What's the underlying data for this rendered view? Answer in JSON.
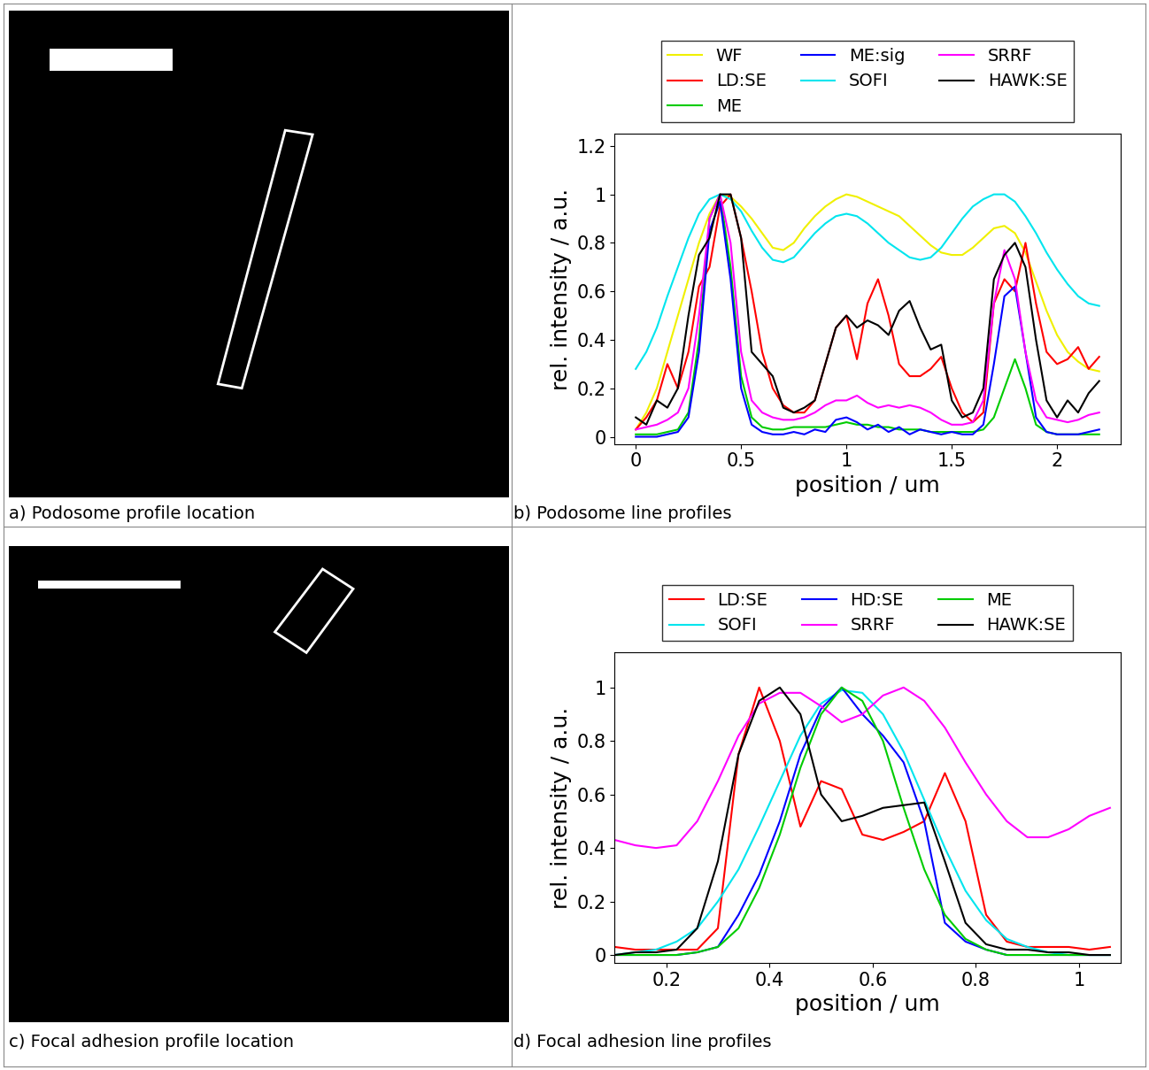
{
  "chart_data": [
    {
      "type": "image",
      "title": "a) Podosome profile location"
    },
    {
      "type": "line",
      "title": "b) Podosome line profiles",
      "x_label": "position / um",
      "y_label": "rel. intensity / a.u.",
      "xlim": [
        -0.1,
        2.3
      ],
      "ylim": [
        -0.03,
        1.25
      ],
      "xticks": [
        0,
        0.5,
        1,
        1.5,
        2
      ],
      "yticks": [
        0,
        0.2,
        0.4,
        0.6,
        0.8,
        1,
        1.2
      ],
      "legend": "top",
      "x": [
        0,
        0.05,
        0.1,
        0.15,
        0.2,
        0.25,
        0.3,
        0.35,
        0.4,
        0.45,
        0.5,
        0.55,
        0.6,
        0.65,
        0.7,
        0.75,
        0.8,
        0.85,
        0.9,
        0.95,
        1.0,
        1.05,
        1.1,
        1.15,
        1.2,
        1.25,
        1.3,
        1.35,
        1.4,
        1.45,
        1.5,
        1.55,
        1.6,
        1.65,
        1.7,
        1.75,
        1.8,
        1.85,
        1.9,
        1.95,
        2.0,
        2.05,
        2.1,
        2.15,
        2.2
      ],
      "series": [
        {
          "name": "WF",
          "color": "#f0f000",
          "values": [
            0.03,
            0.1,
            0.2,
            0.35,
            0.5,
            0.65,
            0.8,
            0.92,
            1.0,
            0.99,
            0.95,
            0.9,
            0.84,
            0.78,
            0.77,
            0.8,
            0.86,
            0.91,
            0.95,
            0.98,
            1.0,
            0.99,
            0.97,
            0.95,
            0.93,
            0.91,
            0.87,
            0.83,
            0.79,
            0.76,
            0.75,
            0.75,
            0.78,
            0.82,
            0.86,
            0.87,
            0.84,
            0.76,
            0.64,
            0.52,
            0.42,
            0.35,
            0.31,
            0.28,
            0.27
          ]
        },
        {
          "name": "LD:SE",
          "color": "#ff0000",
          "values": [
            0.03,
            0.08,
            0.15,
            0.3,
            0.2,
            0.35,
            0.62,
            0.7,
            0.95,
            1.0,
            0.82,
            0.6,
            0.35,
            0.2,
            0.13,
            0.1,
            0.1,
            0.15,
            0.3,
            0.45,
            0.5,
            0.32,
            0.55,
            0.65,
            0.5,
            0.3,
            0.25,
            0.25,
            0.28,
            0.33,
            0.2,
            0.1,
            0.06,
            0.1,
            0.55,
            0.65,
            0.6,
            0.8,
            0.55,
            0.35,
            0.3,
            0.32,
            0.37,
            0.28,
            0.33
          ]
        },
        {
          "name": "ME",
          "color": "#00cc00",
          "values": [
            0.01,
            0.01,
            0.01,
            0.02,
            0.03,
            0.1,
            0.4,
            0.9,
            1.0,
            0.7,
            0.25,
            0.08,
            0.04,
            0.03,
            0.03,
            0.04,
            0.04,
            0.04,
            0.04,
            0.05,
            0.06,
            0.05,
            0.05,
            0.04,
            0.04,
            0.03,
            0.03,
            0.03,
            0.02,
            0.02,
            0.02,
            0.02,
            0.02,
            0.03,
            0.08,
            0.2,
            0.32,
            0.2,
            0.05,
            0.02,
            0.01,
            0.01,
            0.01,
            0.01,
            0.01
          ]
        },
        {
          "name": "ME:sig",
          "color": "#0000ff",
          "values": [
            0,
            0,
            0,
            0.01,
            0.02,
            0.08,
            0.35,
            0.85,
            0.97,
            0.65,
            0.2,
            0.05,
            0.02,
            0.01,
            0.01,
            0.02,
            0.01,
            0.03,
            0.02,
            0.07,
            0.08,
            0.06,
            0.03,
            0.05,
            0.02,
            0.04,
            0.01,
            0.03,
            0.02,
            0.01,
            0.02,
            0.01,
            0.01,
            0.05,
            0.3,
            0.58,
            0.62,
            0.35,
            0.08,
            0.02,
            0.01,
            0.01,
            0.01,
            0.02,
            0.03
          ]
        },
        {
          "name": "SOFI",
          "color": "#00e5ee",
          "values": [
            0.28,
            0.35,
            0.45,
            0.58,
            0.7,
            0.82,
            0.92,
            0.98,
            1.0,
            0.98,
            0.93,
            0.85,
            0.78,
            0.73,
            0.72,
            0.74,
            0.79,
            0.84,
            0.88,
            0.91,
            0.92,
            0.91,
            0.88,
            0.84,
            0.8,
            0.77,
            0.74,
            0.73,
            0.74,
            0.78,
            0.84,
            0.9,
            0.95,
            0.98,
            1.0,
            1.0,
            0.97,
            0.91,
            0.84,
            0.76,
            0.69,
            0.63,
            0.58,
            0.55,
            0.54
          ]
        },
        {
          "name": "SRRF",
          "color": "#ff00ff",
          "values": [
            0.03,
            0.04,
            0.05,
            0.07,
            0.1,
            0.2,
            0.5,
            0.9,
            1.0,
            0.8,
            0.35,
            0.15,
            0.1,
            0.08,
            0.07,
            0.07,
            0.08,
            0.1,
            0.13,
            0.15,
            0.15,
            0.17,
            0.14,
            0.12,
            0.13,
            0.12,
            0.13,
            0.12,
            0.1,
            0.07,
            0.05,
            0.05,
            0.06,
            0.15,
            0.55,
            0.77,
            0.65,
            0.35,
            0.15,
            0.08,
            0.07,
            0.06,
            0.07,
            0.09,
            0.1
          ]
        },
        {
          "name": "HAWK:SE",
          "color": "#000000",
          "values": [
            0.08,
            0.05,
            0.15,
            0.12,
            0.2,
            0.5,
            0.75,
            0.82,
            1.0,
            1.0,
            0.82,
            0.35,
            0.3,
            0.25,
            0.12,
            0.1,
            0.12,
            0.15,
            0.3,
            0.45,
            0.5,
            0.45,
            0.48,
            0.46,
            0.42,
            0.52,
            0.56,
            0.45,
            0.36,
            0.38,
            0.15,
            0.08,
            0.1,
            0.2,
            0.65,
            0.75,
            0.8,
            0.7,
            0.4,
            0.15,
            0.08,
            0.15,
            0.1,
            0.18,
            0.23
          ]
        }
      ]
    },
    {
      "type": "image",
      "title": "c) Focal adhesion profile location"
    },
    {
      "type": "line",
      "title": "d) Focal adhesion line profiles",
      "x_label": "position / um",
      "y_label": "rel. intensity / a.u.",
      "xlim": [
        0.1,
        1.08
      ],
      "ylim": [
        -0.03,
        1.13
      ],
      "xticks": [
        0.2,
        0.4,
        0.6,
        0.8,
        1
      ],
      "yticks": [
        0,
        0.2,
        0.4,
        0.6,
        0.8,
        1
      ],
      "legend": "top",
      "x": [
        0.1,
        0.14,
        0.18,
        0.22,
        0.26,
        0.3,
        0.34,
        0.38,
        0.42,
        0.46,
        0.5,
        0.54,
        0.58,
        0.62,
        0.66,
        0.7,
        0.74,
        0.78,
        0.82,
        0.86,
        0.9,
        0.94,
        0.98,
        1.02,
        1.06
      ],
      "series": [
        {
          "name": "LD:SE",
          "color": "#ff0000",
          "values": [
            0.03,
            0.02,
            0.02,
            0.02,
            0.02,
            0.1,
            0.75,
            1.0,
            0.8,
            0.48,
            0.65,
            0.62,
            0.45,
            0.43,
            0.46,
            0.5,
            0.68,
            0.5,
            0.15,
            0.05,
            0.03,
            0.03,
            0.03,
            0.02,
            0.03
          ]
        },
        {
          "name": "SOFI",
          "color": "#00e5ee",
          "values": [
            0,
            0.01,
            0.02,
            0.05,
            0.1,
            0.2,
            0.32,
            0.48,
            0.65,
            0.82,
            0.94,
            0.99,
            0.98,
            0.9,
            0.76,
            0.58,
            0.4,
            0.24,
            0.13,
            0.06,
            0.03,
            0.01,
            0,
            0,
            0
          ]
        },
        {
          "name": "HD:SE",
          "color": "#0000ff",
          "values": [
            0,
            0,
            0,
            0,
            0.01,
            0.03,
            0.15,
            0.3,
            0.5,
            0.75,
            0.92,
            1.0,
            0.9,
            0.82,
            0.72,
            0.5,
            0.12,
            0.05,
            0.02,
            0,
            0,
            0,
            0,
            0,
            0
          ]
        },
        {
          "name": "SRRF",
          "color": "#ff00ff",
          "values": [
            0.43,
            0.41,
            0.4,
            0.41,
            0.5,
            0.65,
            0.82,
            0.94,
            0.98,
            0.98,
            0.93,
            0.87,
            0.9,
            0.97,
            1.0,
            0.95,
            0.85,
            0.72,
            0.6,
            0.5,
            0.44,
            0.44,
            0.47,
            0.52,
            0.55
          ]
        },
        {
          "name": "ME",
          "color": "#00cc00",
          "values": [
            0,
            0,
            0,
            0,
            0.01,
            0.03,
            0.1,
            0.25,
            0.45,
            0.7,
            0.9,
            1.0,
            0.95,
            0.8,
            0.55,
            0.32,
            0.15,
            0.06,
            0.02,
            0,
            0,
            0,
            0,
            0,
            0
          ]
        },
        {
          "name": "HAWK:SE",
          "color": "#000000",
          "values": [
            0,
            0.01,
            0.01,
            0.02,
            0.1,
            0.35,
            0.75,
            0.95,
            1.0,
            0.9,
            0.6,
            0.5,
            0.52,
            0.55,
            0.56,
            0.57,
            0.35,
            0.12,
            0.04,
            0.02,
            0.02,
            0.01,
            0.01,
            0,
            0
          ]
        }
      ]
    }
  ]
}
